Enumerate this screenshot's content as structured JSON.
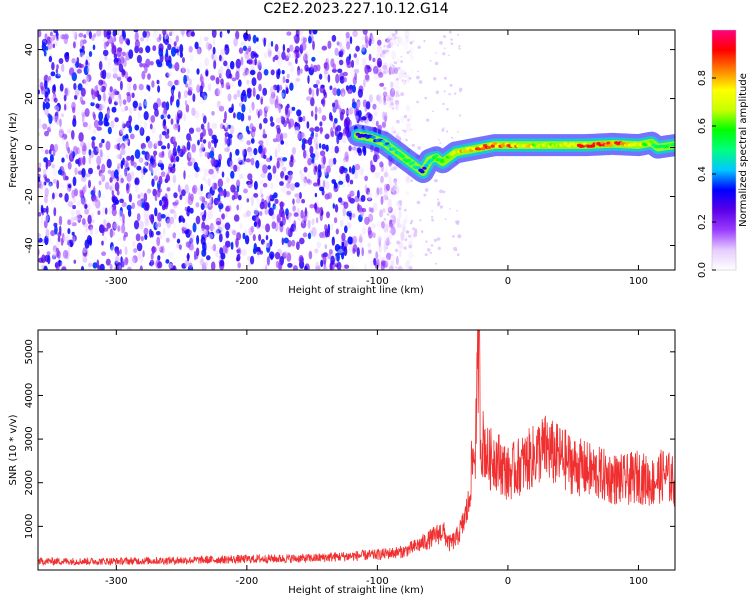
{
  "figure": {
    "title": "C2E2.2023.227.10.12.G14"
  },
  "chart_data": [
    {
      "type": "heatmap",
      "title": "",
      "xlabel": "Height of straight line (km)",
      "ylabel": "Frequency (Hz)",
      "xlim": [
        -360,
        128
      ],
      "ylim": [
        -50,
        48
      ],
      "xticks": [
        -300,
        -200,
        -100,
        0,
        100
      ],
      "yticks": [
        -40,
        -20,
        0,
        20,
        40
      ],
      "grid": false,
      "colorbar": {
        "label": "Normalized spectral amplitude",
        "range": [
          0,
          1
        ],
        "ticks": [
          0.0,
          0.2,
          0.4,
          0.6,
          0.8
        ],
        "colormap": [
          "#ffffff",
          "#e6ccff",
          "#9a3cff",
          "#5a00e8",
          "#0000ff",
          "#00c8ff",
          "#00ff80",
          "#00ff00",
          "#c8ff00",
          "#ffff00",
          "#ff8000",
          "#ff0000",
          "#ff0080"
        ]
      },
      "noise_floor": {
        "x_range": [
          -360,
          -100
        ],
        "freq_range": [
          -50,
          48
        ],
        "amplitude": 0.15
      },
      "signal_track": {
        "x": [
          -115,
          -105,
          -95,
          -85,
          -75,
          -70,
          -65,
          -60,
          -55,
          -50,
          -45,
          -40,
          -30,
          -20,
          -10,
          0,
          20,
          40,
          60,
          80,
          100,
          110,
          115,
          128
        ],
        "freq": [
          5,
          4,
          2,
          -2,
          -6,
          -8,
          -10,
          -5,
          -4,
          -6,
          -4,
          -2,
          -1,
          0,
          1,
          1,
          1,
          1,
          1,
          1.5,
          1,
          2,
          0,
          1
        ],
        "amplitude": [
          0.3,
          0.35,
          0.4,
          0.45,
          0.5,
          0.45,
          0.3,
          0.45,
          0.55,
          0.6,
          0.65,
          0.7,
          0.8,
          0.85,
          0.85,
          0.8,
          0.7,
          0.65,
          0.85,
          0.9,
          0.7,
          0.6,
          0.5,
          0.55
        ]
      }
    },
    {
      "type": "line",
      "title": "",
      "xlabel": "Height of straight line (km)",
      "ylabel": "SNR (10 * v/v)",
      "xlim": [
        -360,
        128
      ],
      "ylim": [
        0,
        5500
      ],
      "xticks": [
        -300,
        -200,
        -100,
        0,
        100
      ],
      "yticks": [
        1000,
        2000,
        3000,
        4000,
        5000
      ],
      "grid": false,
      "series": [
        {
          "color": "#f03030",
          "x": [
            -360,
            -300,
            -250,
            -200,
            -150,
            -120,
            -100,
            -80,
            -70,
            -60,
            -55,
            -50,
            -45,
            -40,
            -35,
            -30,
            -28,
            -25,
            -23,
            -22,
            -21,
            -18,
            -15,
            -10,
            -5,
            0,
            5,
            10,
            15,
            20,
            25,
            30,
            35,
            40,
            50,
            60,
            70,
            80,
            90,
            100,
            110,
            120,
            128
          ],
          "y": [
            200,
            200,
            220,
            250,
            270,
            320,
            350,
            420,
            550,
            700,
            800,
            900,
            600,
            700,
            1000,
            1500,
            2300,
            2800,
            4600,
            5400,
            2900,
            2900,
            2500,
            2600,
            2400,
            2200,
            2300,
            2400,
            2500,
            2600,
            2750,
            2800,
            2650,
            2600,
            2400,
            2300,
            2200,
            2100,
            2050,
            2150,
            2000,
            2200,
            2000
          ]
        }
      ]
    }
  ]
}
